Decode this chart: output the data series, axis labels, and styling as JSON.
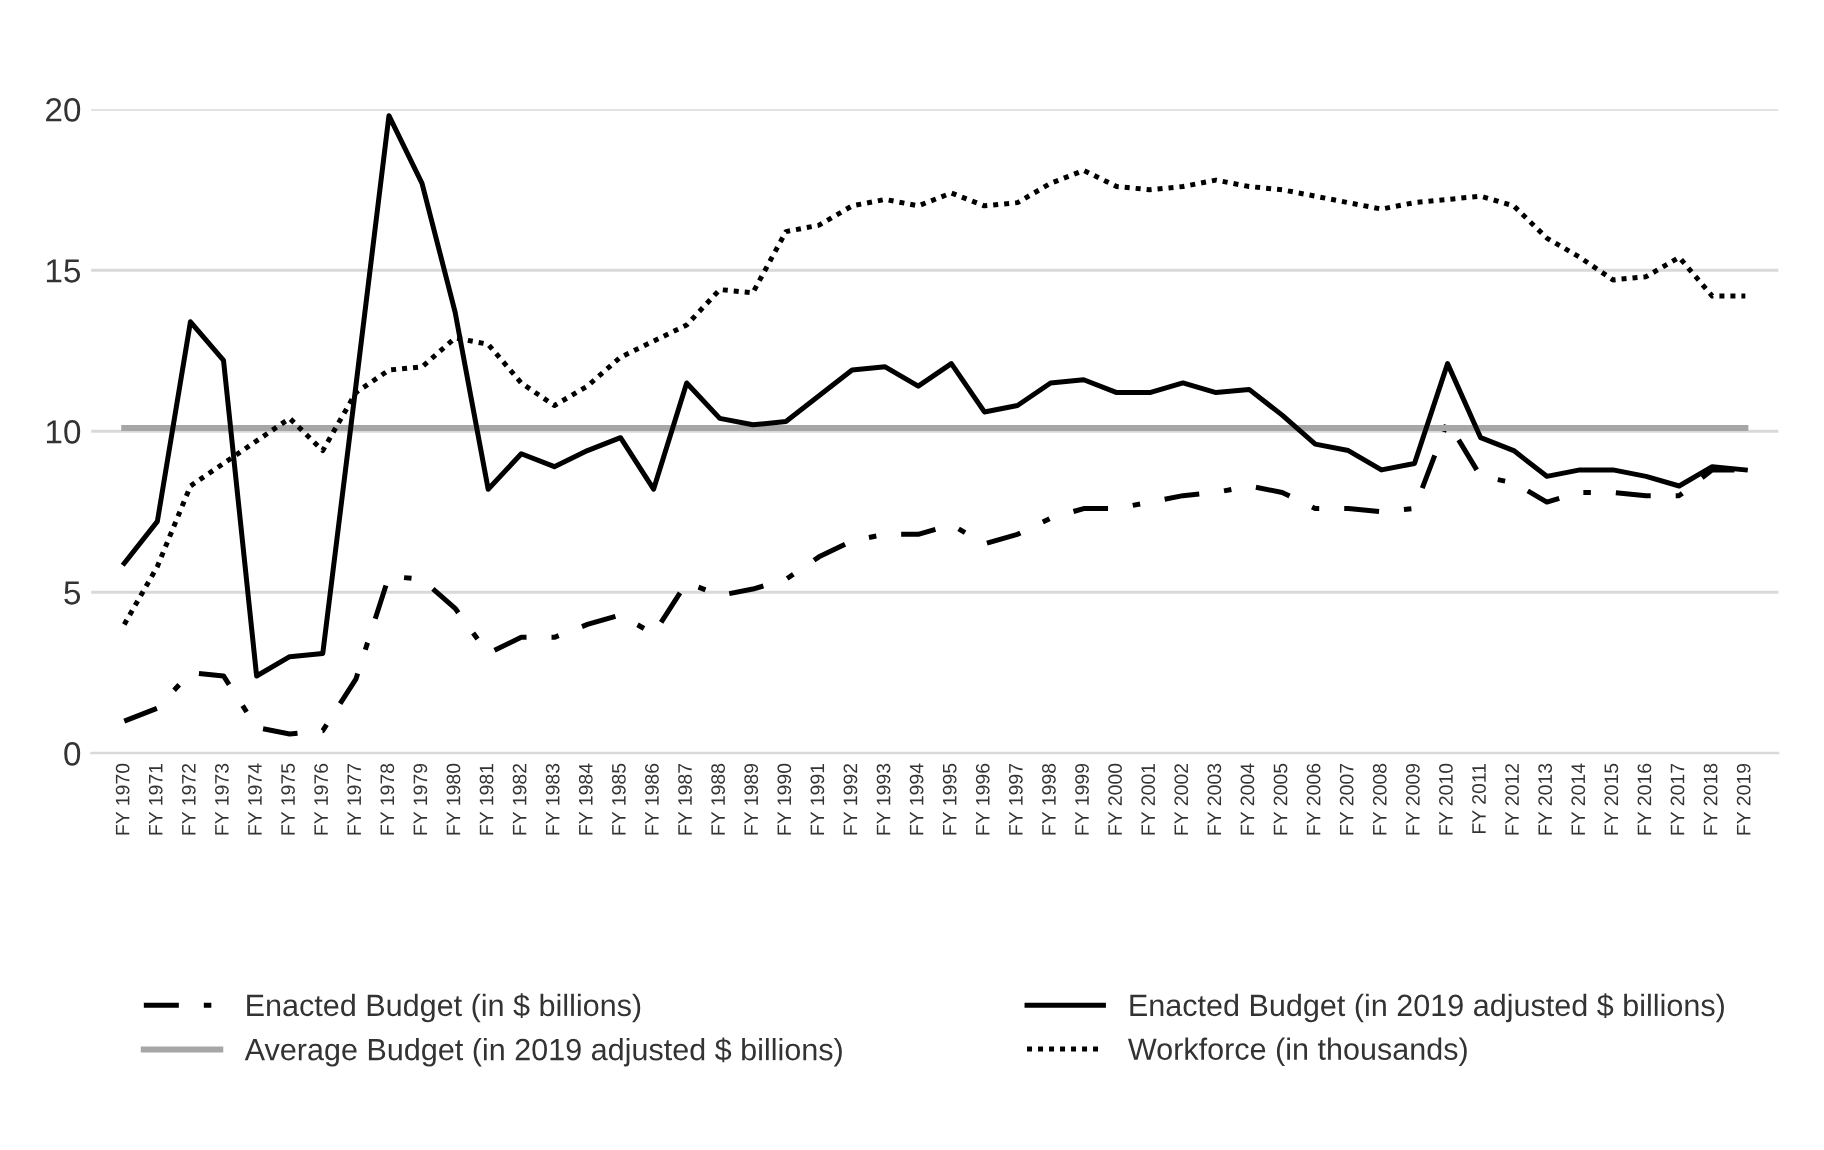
{
  "chart_data": {
    "type": "line",
    "categories": [
      "FY 1970",
      "FY 1971",
      "FY 1972",
      "FY 1973",
      "FY 1974",
      "FY 1975",
      "FY 1976",
      "FY 1977",
      "FY 1978",
      "FY 1979",
      "FY 1980",
      "FY 1981",
      "FY 1982",
      "FY 1983",
      "FY 1984",
      "FY 1985",
      "FY 1986",
      "FY 1987",
      "FY 1988",
      "FY 1989",
      "FY 1990",
      "FY 1991",
      "FY 1992",
      "FY 1993",
      "FY 1994",
      "FY 1995",
      "FY 1996",
      "FY 1997",
      "FY 1998",
      "FY 1999",
      "FY 2000",
      "FY 2001",
      "FY 2002",
      "FY 2003",
      "FY 2004",
      "FY 2005",
      "FY 2006",
      "FY 2007",
      "FY 2008",
      "FY 2009",
      "FY 2010",
      "FY 2011",
      "FY 2012",
      "FY 2013",
      "FY 2014",
      "FY 2015",
      "FY 2016",
      "FY 2017",
      "FY 2018",
      "FY 2019"
    ],
    "series": [
      {
        "name": "Enacted Budget (in $ billions)",
        "color": "#000000",
        "line_style": "dashdot",
        "values": [
          1.0,
          1.4,
          2.5,
          2.4,
          0.8,
          0.6,
          0.7,
          2.3,
          5.5,
          5.4,
          4.5,
          3.1,
          3.6,
          3.6,
          4.0,
          4.3,
          3.7,
          5.3,
          4.9,
          5.1,
          5.4,
          6.1,
          6.6,
          6.8,
          6.8,
          7.1,
          6.5,
          6.8,
          7.3,
          7.6,
          7.6,
          7.8,
          8.0,
          8.1,
          8.3,
          8.1,
          7.6,
          7.6,
          7.5,
          7.6,
          10.3,
          8.6,
          8.4,
          7.8,
          8.1,
          8.1,
          8.0,
          8.0,
          8.8,
          8.8
        ]
      },
      {
        "name": "Average Budget (in 2019 adjusted $ billions)",
        "color": "#a6a6a6",
        "line_style": "solid",
        "values": [
          10.1,
          10.1,
          10.1,
          10.1,
          10.1,
          10.1,
          10.1,
          10.1,
          10.1,
          10.1,
          10.1,
          10.1,
          10.1,
          10.1,
          10.1,
          10.1,
          10.1,
          10.1,
          10.1,
          10.1,
          10.1,
          10.1,
          10.1,
          10.1,
          10.1,
          10.1,
          10.1,
          10.1,
          10.1,
          10.1,
          10.1,
          10.1,
          10.1,
          10.1,
          10.1,
          10.1,
          10.1,
          10.1,
          10.1,
          10.1,
          10.1,
          10.1,
          10.1,
          10.1,
          10.1,
          10.1,
          10.1,
          10.1,
          10.1,
          10.1
        ]
      },
      {
        "name": "Enacted Budget (in 2019 adjusted $ billions)",
        "color": "#000000",
        "line_style": "solid",
        "values": [
          5.9,
          7.2,
          13.4,
          12.2,
          2.4,
          3.0,
          3.1,
          11.4,
          19.8,
          17.7,
          13.7,
          8.2,
          9.3,
          8.9,
          9.4,
          9.8,
          8.2,
          11.5,
          10.4,
          10.2,
          10.3,
          11.1,
          11.9,
          12.0,
          11.4,
          12.1,
          10.6,
          10.8,
          11.5,
          11.6,
          11.2,
          11.2,
          11.5,
          11.2,
          11.3,
          10.5,
          9.6,
          9.4,
          8.8,
          9.0,
          12.1,
          9.8,
          9.4,
          8.6,
          8.8,
          8.8,
          8.6,
          8.3,
          8.9,
          8.8
        ]
      },
      {
        "name": "Workforce (in thousands)",
        "color": "#000000",
        "line_style": "dotted",
        "values": [
          4.0,
          5.8,
          8.3,
          9.0,
          9.7,
          10.4,
          9.4,
          11.2,
          11.9,
          12.0,
          12.9,
          12.7,
          11.5,
          10.8,
          11.4,
          12.3,
          12.8,
          13.3,
          14.4,
          14.3,
          16.2,
          16.4,
          17.0,
          17.2,
          17.0,
          17.4,
          17.0,
          17.1,
          17.7,
          18.1,
          17.6,
          17.5,
          17.6,
          17.8,
          17.6,
          17.5,
          17.3,
          17.1,
          16.9,
          17.1,
          17.2,
          17.3,
          17.0,
          16.0,
          15.4,
          14.7,
          14.8,
          15.4,
          14.2,
          14.2
        ]
      }
    ],
    "ylim": [
      0,
      20
    ],
    "yticks": [
      0,
      5,
      10,
      15,
      20
    ],
    "grid": "y",
    "legend": "bottom",
    "marker": "none"
  }
}
